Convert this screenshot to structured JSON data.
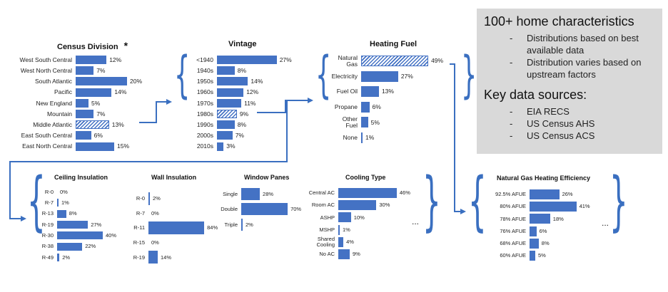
{
  "chart_data": [
    {
      "id": "census",
      "type": "bar",
      "title": "Census Division",
      "title_mark": "*",
      "categories": [
        "West South Central",
        "West North Central",
        "South Atlantic",
        "Pacific",
        "New England",
        "Mountain",
        "Middle Atlantic",
        "East South Central",
        "East North Central"
      ],
      "values": [
        12,
        7,
        20,
        14,
        5,
        7,
        13,
        6,
        15
      ],
      "hatched": [
        6
      ],
      "unit": "%"
    },
    {
      "id": "vintage",
      "type": "bar",
      "title": "Vintage",
      "categories": [
        "<1940",
        "1940s",
        "1950s",
        "1960s",
        "1970s",
        "1980s",
        "1990s",
        "2000s",
        "2010s"
      ],
      "values": [
        27,
        8,
        14,
        12,
        11,
        9,
        8,
        7,
        3
      ],
      "hatched": [
        5
      ],
      "unit": "%"
    },
    {
      "id": "fuel",
      "type": "bar",
      "title": "Heating Fuel",
      "categories": [
        "Natural\nGas",
        "Electricity",
        "Fuel Oil",
        "Propane",
        "Other\nFuel",
        "None"
      ],
      "values": [
        49,
        27,
        13,
        6,
        5,
        1
      ],
      "hatched": [
        0
      ],
      "unit": "%"
    },
    {
      "id": "ceiling",
      "type": "bar",
      "title": "Ceiling Insulation",
      "categories": [
        "R-0",
        "R-7",
        "R-13",
        "R-19",
        "R-30",
        "R-38",
        "R-49"
      ],
      "values": [
        0,
        1,
        8,
        27,
        40,
        22,
        2
      ],
      "hatched": [],
      "unit": "%"
    },
    {
      "id": "wall",
      "type": "bar",
      "title": "Wall Insulation",
      "categories": [
        "R-0",
        "R-7",
        "R-11",
        "R-15",
        "R-19"
      ],
      "values": [
        2,
        0,
        84,
        0,
        14
      ],
      "hatched": [],
      "unit": "%"
    },
    {
      "id": "panes",
      "type": "bar",
      "title": "Window Panes",
      "categories": [
        "Single",
        "Double",
        "Triple"
      ],
      "values": [
        28,
        70,
        2
      ],
      "hatched": [],
      "unit": "%"
    },
    {
      "id": "cooling",
      "type": "bar",
      "title": "Cooling Type",
      "categories": [
        "Central AC",
        "Room AC",
        "ASHP",
        "MSHP",
        "Shared\nCooling",
        "No AC"
      ],
      "values": [
        46,
        30,
        10,
        1,
        4,
        9
      ],
      "hatched": [],
      "unit": "%"
    },
    {
      "id": "efficiency",
      "type": "bar",
      "title": "Natural Gas Heating Efficiency",
      "categories": [
        "92.5% AFUE",
        "80% AFUE",
        "78% AFUE",
        "76% AFUE",
        "68% AFUE",
        "60% AFUE"
      ],
      "values": [
        26,
        41,
        18,
        6,
        8,
        5
      ],
      "hatched": [],
      "unit": "%"
    }
  ],
  "notes": {
    "heading1": "100+ home characteristics",
    "items1": [
      "Distributions based on best available data",
      "Distribution varies based on upstream factors"
    ],
    "heading2": "Key data sources:",
    "items2": [
      "EIA RECS",
      "US Census AHS",
      "US Census ACS"
    ]
  },
  "ellipsis": "..."
}
